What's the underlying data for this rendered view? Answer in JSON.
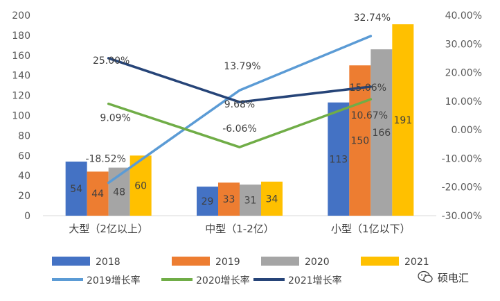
{
  "chart_data": {
    "type": "bar",
    "categories": [
      "大型（2亿以上）",
      "中型（1-2亿）",
      "小型（1亿以下）"
    ],
    "series": [
      {
        "name": "2018",
        "color": "#4472c4",
        "values": [
          54,
          29,
          113
        ],
        "labels": [
          "54",
          "29",
          "113"
        ]
      },
      {
        "name": "2019",
        "color": "#ed7d31",
        "values": [
          44,
          33,
          150
        ],
        "labels": [
          "44",
          "33",
          "150"
        ]
      },
      {
        "name": "2020",
        "color": "#a5a5a5",
        "values": [
          48,
          31,
          166
        ],
        "labels": [
          "48",
          "31",
          "166"
        ]
      },
      {
        "name": "2021",
        "color": "#ffc000",
        "values": [
          60,
          34,
          191
        ],
        "labels": [
          "60",
          "34",
          "191"
        ]
      }
    ],
    "line_series": [
      {
        "name": "2019增长率",
        "color": "#5b9bd5",
        "values": [
          -18.52,
          13.79,
          32.74
        ],
        "labels": [
          "-18.52%",
          "13.79%",
          "32.74%"
        ]
      },
      {
        "name": "2020增长率",
        "color": "#70ad47",
        "values": [
          9.09,
          -6.06,
          10.67
        ],
        "labels": [
          "9.09%",
          "-6.06%",
          "10.67%"
        ]
      },
      {
        "name": "2021增长率",
        "color": "#264478",
        "values": [
          25.0,
          9.68,
          15.06
        ],
        "labels": [
          "25.00%",
          "9.68%",
          "15.06%"
        ]
      }
    ],
    "y_left": {
      "min": 0,
      "max": 200,
      "step": 20,
      "ticks": [
        "0",
        "20",
        "40",
        "60",
        "80",
        "100",
        "120",
        "140",
        "160",
        "180",
        "200"
      ]
    },
    "y_right": {
      "min": -30,
      "max": 40,
      "step": 10,
      "ticks": [
        "-30.00%",
        "-20.00%",
        "-10.00%",
        "0.00%",
        "10.00%",
        "20.00%",
        "30.00%",
        "40.00%"
      ]
    },
    "legend_position": "bottom",
    "grid": false
  },
  "watermark": {
    "text": "硕电汇",
    "icon": "wechat-icon"
  }
}
